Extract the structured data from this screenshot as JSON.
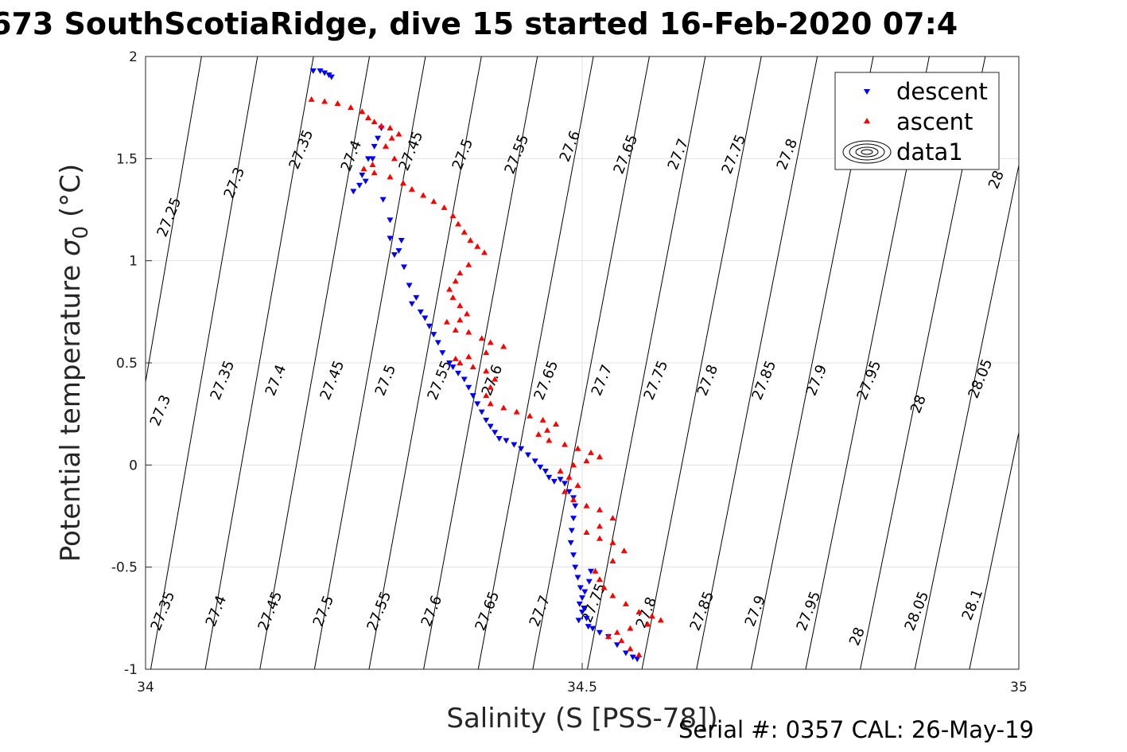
{
  "chart_data": {
    "type": "scatter",
    "title": "673 SouthScotiaRidge, dive 15 started 16-Feb-2020 07:4",
    "xlabel": "Salinity (S [PSS-78])",
    "ylabel": "Potential temperature",
    "ylabel_symbol": "σ",
    "ylabel_sub": "0",
    "ylabel_unit": "(°C)",
    "xlim": [
      34,
      35
    ],
    "ylim": [
      -1,
      2
    ],
    "xticks": [
      "34",
      "34.5",
      "35"
    ],
    "yticks": [
      "-1",
      "-0.5",
      "0",
      "0.5",
      "1",
      "1.5",
      "2"
    ],
    "grid": true,
    "legend_position": "top-right",
    "legend": [
      "descent",
      "ascent",
      "data1"
    ],
    "contour_levels": [
      "27.25",
      "27.3",
      "27.35",
      "27.4",
      "27.45",
      "27.5",
      "27.55",
      "27.6",
      "27.65",
      "27.7",
      "27.75",
      "27.8",
      "27.85",
      "27.9",
      "27.95",
      "28",
      "28.05",
      "28.1"
    ],
    "series": [
      {
        "name": "descent",
        "marker": "down-triangle",
        "color": "#0000ff",
        "points": [
          [
            34.192,
            1.93
          ],
          [
            34.2,
            1.93
          ],
          [
            34.205,
            1.92
          ],
          [
            34.21,
            1.91
          ],
          [
            34.213,
            1.9
          ],
          [
            34.255,
            1.5
          ],
          [
            34.248,
            1.42
          ],
          [
            34.238,
            1.34
          ],
          [
            34.245,
            1.37
          ],
          [
            34.252,
            1.39
          ],
          [
            34.26,
            1.5
          ],
          [
            34.266,
            1.6
          ],
          [
            34.27,
            1.65
          ],
          [
            34.262,
            1.56
          ],
          [
            34.28,
            1.2
          ],
          [
            34.272,
            1.3
          ],
          [
            34.28,
            1.11
          ],
          [
            34.29,
            1.05
          ],
          [
            34.285,
            1.03
          ],
          [
            34.293,
            1.1
          ],
          [
            34.296,
            0.97
          ],
          [
            34.302,
            0.88
          ],
          [
            34.31,
            0.82
          ],
          [
            34.305,
            0.79
          ],
          [
            34.315,
            0.75
          ],
          [
            34.32,
            0.72
          ],
          [
            34.325,
            0.68
          ],
          [
            34.33,
            0.64
          ],
          [
            34.335,
            0.6
          ],
          [
            34.34,
            0.55
          ],
          [
            34.348,
            0.5
          ],
          [
            34.352,
            0.48
          ],
          [
            34.358,
            0.45
          ],
          [
            34.365,
            0.42
          ],
          [
            34.37,
            0.38
          ],
          [
            34.375,
            0.34
          ],
          [
            34.38,
            0.3
          ],
          [
            34.385,
            0.26
          ],
          [
            34.39,
            0.22
          ],
          [
            34.395,
            0.19
          ],
          [
            34.4,
            0.16
          ],
          [
            34.405,
            0.13
          ],
          [
            34.413,
            0.12
          ],
          [
            34.422,
            0.1
          ],
          [
            34.43,
            0.08
          ],
          [
            34.438,
            0.05
          ],
          [
            34.446,
            0.02
          ],
          [
            34.452,
            -0.01
          ],
          [
            34.458,
            -0.03
          ],
          [
            34.462,
            -0.06
          ],
          [
            34.468,
            -0.08
          ],
          [
            34.475,
            -0.07
          ],
          [
            34.48,
            -0.09
          ],
          [
            34.485,
            -0.13
          ],
          [
            34.49,
            -0.16
          ],
          [
            34.492,
            -0.2
          ],
          [
            34.49,
            -0.26
          ],
          [
            34.488,
            -0.32
          ],
          [
            34.487,
            -0.38
          ],
          [
            34.49,
            -0.44
          ],
          [
            34.492,
            -0.5
          ],
          [
            34.495,
            -0.55
          ],
          [
            34.498,
            -0.6
          ],
          [
            34.5,
            -0.65
          ],
          [
            34.502,
            -0.7
          ],
          [
            34.505,
            -0.75
          ],
          [
            34.507,
            -0.79
          ],
          [
            34.512,
            -0.8
          ],
          [
            34.52,
            -0.82
          ],
          [
            34.53,
            -0.84
          ],
          [
            34.54,
            -0.88
          ],
          [
            34.55,
            -0.92
          ],
          [
            34.558,
            -0.94
          ],
          [
            34.563,
            -0.95
          ],
          [
            34.496,
            -0.76
          ],
          [
            34.5,
            -0.72
          ],
          [
            34.497,
            -0.68
          ],
          [
            34.503,
            -0.62
          ],
          [
            34.508,
            -0.57
          ],
          [
            34.51,
            -0.52
          ]
        ]
      },
      {
        "name": "ascent",
        "marker": "up-triangle",
        "color": "#ff0000",
        "points": [
          [
            34.19,
            1.79
          ],
          [
            34.205,
            1.78
          ],
          [
            34.22,
            1.77
          ],
          [
            34.235,
            1.75
          ],
          [
            34.248,
            1.73
          ],
          [
            34.255,
            1.7
          ],
          [
            34.262,
            1.68
          ],
          [
            34.27,
            1.66
          ],
          [
            34.28,
            1.65
          ],
          [
            34.29,
            1.62
          ],
          [
            34.282,
            1.6
          ],
          [
            34.275,
            1.56
          ],
          [
            34.285,
            1.5
          ],
          [
            34.26,
            1.47
          ],
          [
            34.25,
            1.45
          ],
          [
            34.262,
            1.43
          ],
          [
            34.28,
            1.41
          ],
          [
            34.295,
            1.38
          ],
          [
            34.305,
            1.35
          ],
          [
            34.318,
            1.32
          ],
          [
            34.33,
            1.29
          ],
          [
            34.342,
            1.26
          ],
          [
            34.352,
            1.22
          ],
          [
            34.358,
            1.18
          ],
          [
            34.365,
            1.14
          ],
          [
            34.372,
            1.1
          ],
          [
            34.38,
            1.07
          ],
          [
            34.388,
            1.04
          ],
          [
            34.37,
            0.98
          ],
          [
            34.36,
            0.94
          ],
          [
            34.355,
            0.9
          ],
          [
            34.348,
            0.86
          ],
          [
            34.352,
            0.82
          ],
          [
            34.36,
            0.78
          ],
          [
            34.368,
            0.74
          ],
          [
            34.36,
            0.71
          ],
          [
            34.345,
            0.7
          ],
          [
            34.355,
            0.66
          ],
          [
            34.37,
            0.65
          ],
          [
            34.385,
            0.62
          ],
          [
            34.395,
            0.6
          ],
          [
            34.41,
            0.58
          ],
          [
            34.39,
            0.55
          ],
          [
            34.37,
            0.53
          ],
          [
            34.355,
            0.52
          ],
          [
            34.36,
            0.5
          ],
          [
            34.375,
            0.48
          ],
          [
            34.39,
            0.46
          ],
          [
            34.4,
            0.42
          ],
          [
            34.395,
            0.38
          ],
          [
            34.39,
            0.34
          ],
          [
            34.395,
            0.3
          ],
          [
            34.41,
            0.28
          ],
          [
            34.425,
            0.26
          ],
          [
            34.44,
            0.24
          ],
          [
            34.455,
            0.22
          ],
          [
            34.47,
            0.2
          ],
          [
            34.46,
            0.17
          ],
          [
            34.45,
            0.15
          ],
          [
            34.462,
            0.12
          ],
          [
            34.48,
            0.1
          ],
          [
            34.495,
            0.08
          ],
          [
            34.51,
            0.06
          ],
          [
            34.52,
            0.04
          ],
          [
            34.505,
            0.02
          ],
          [
            34.49,
            0.0
          ],
          [
            34.475,
            -0.03
          ],
          [
            34.485,
            -0.06
          ],
          [
            34.495,
            -0.1
          ],
          [
            34.48,
            -0.13
          ],
          [
            34.49,
            -0.17
          ],
          [
            34.505,
            -0.2
          ],
          [
            34.52,
            -0.22
          ],
          [
            34.535,
            -0.26
          ],
          [
            34.52,
            -0.3
          ],
          [
            34.505,
            -0.33
          ],
          [
            34.52,
            -0.36
          ],
          [
            34.535,
            -0.38
          ],
          [
            34.548,
            -0.42
          ],
          [
            34.535,
            -0.47
          ],
          [
            34.515,
            -0.52
          ],
          [
            34.52,
            -0.56
          ],
          [
            34.525,
            -0.6
          ],
          [
            34.535,
            -0.64
          ],
          [
            34.55,
            -0.68
          ],
          [
            34.565,
            -0.72
          ],
          [
            34.58,
            -0.74
          ],
          [
            34.59,
            -0.76
          ],
          [
            34.575,
            -0.78
          ],
          [
            34.555,
            -0.8
          ],
          [
            34.54,
            -0.82
          ],
          [
            34.53,
            -0.84
          ],
          [
            34.545,
            -0.86
          ],
          [
            34.555,
            -0.9
          ],
          [
            34.565,
            -0.93
          ]
        ]
      }
    ]
  },
  "footer": {
    "serial_text": "Serial #: 0357  CAL: 26-May-19"
  }
}
